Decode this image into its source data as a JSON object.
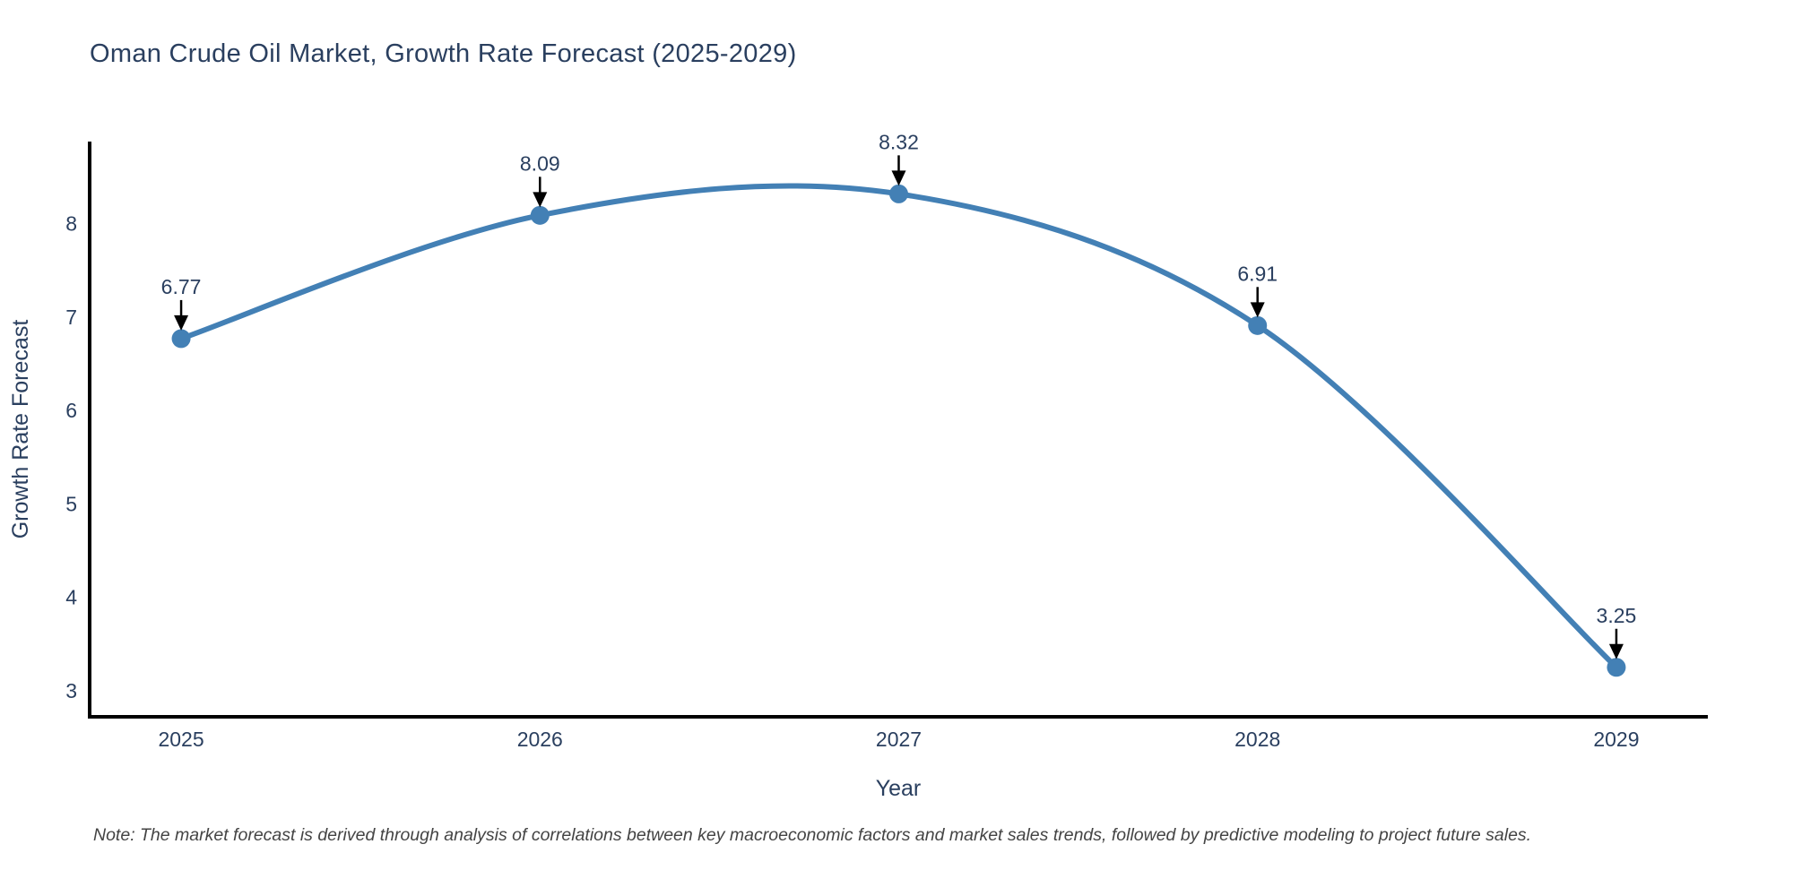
{
  "title": "Oman Crude Oil Market, Growth Rate Forecast (2025-2029)",
  "note": "Note: The market forecast is derived through analysis of correlations between key macroeconomic factors and market sales trends, followed by predictive modeling to project future sales.",
  "chart_data": {
    "type": "line",
    "title": "Oman Crude Oil Market, Growth Rate Forecast (2025-2029)",
    "categories": [
      "2025",
      "2026",
      "2027",
      "2028",
      "2029"
    ],
    "x": [
      2025,
      2026,
      2027,
      2028,
      2029
    ],
    "series": [
      {
        "name": "Growth Rate Forecast",
        "values": [
          6.77,
          8.09,
          8.32,
          6.91,
          3.25
        ]
      }
    ],
    "point_labels": [
      "6.77",
      "8.09",
      "8.32",
      "6.91",
      "3.25"
    ],
    "xlabel": "Year",
    "ylabel": "Growth Rate Forecast",
    "yticks": [
      3,
      4,
      5,
      6,
      7,
      8
    ],
    "ylim": [
      2.72,
      8.88
    ],
    "xlim": [
      2024.745,
      2029.255
    ],
    "grid": false,
    "legend": false,
    "line_shape": "spline",
    "marker": "circle",
    "annotation_style": "value-with-down-arrow",
    "colors": {
      "line": "#4380b5",
      "marker": "#4380b5",
      "axis": "#000000",
      "text": "#2a3f5f",
      "arrow": "#000000",
      "note_text": "#444444",
      "background": "#ffffff"
    }
  }
}
